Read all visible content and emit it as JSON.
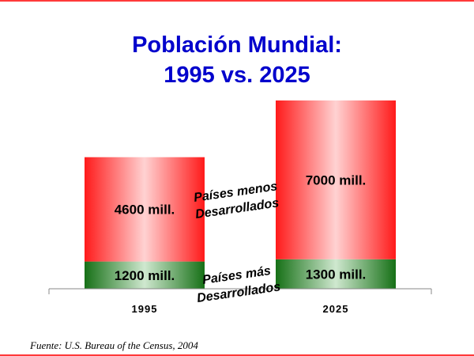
{
  "chart_data": {
    "type": "bar",
    "stacked": true,
    "title_line1": "Población Mundial:",
    "title_line2": "1995 vs. 2025",
    "categories": [
      "1995",
      "2025"
    ],
    "series": [
      {
        "name": "Países más Desarrollados",
        "values": [
          1200,
          1300
        ],
        "labels": [
          "1200 mill.",
          "1300 mill."
        ],
        "color": "#1a7a1a"
      },
      {
        "name": "Países menos Desarrollados",
        "values": [
          4600,
          7000
        ],
        "labels": [
          "4600 mill.",
          "7000 mill."
        ],
        "color": "#ff1a1a"
      }
    ],
    "annotations": [
      {
        "line1": "Países menos",
        "line2": "Desarrollados"
      },
      {
        "line1": "Países más",
        "line2": "Desarrollados"
      }
    ],
    "ylim": [
      0,
      8300
    ],
    "source": "Fuente: U.S. Bureau of the Census, 2004"
  }
}
